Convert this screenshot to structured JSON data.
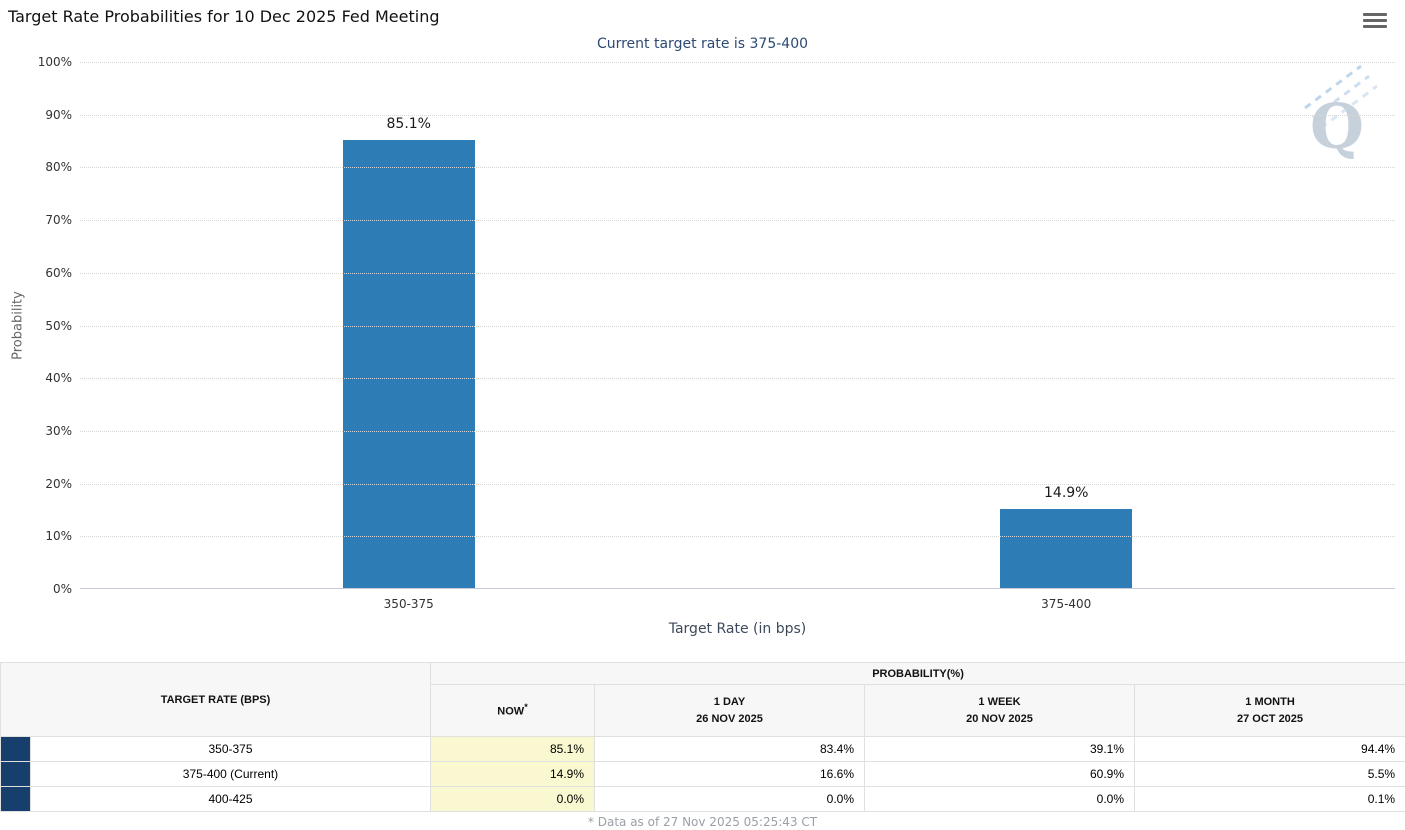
{
  "header": {
    "title": "Target Rate Probabilities for 10 Dec 2025 Fed Meeting"
  },
  "chart": {
    "subtitle": "Current target rate is 375-400",
    "ylabel": "Probability",
    "xlabel": "Target Rate (in bps)",
    "watermark_letter": "Q"
  },
  "chart_data": {
    "type": "bar",
    "title": "Target Rate Probabilities for 10 Dec 2025 Fed Meeting",
    "subtitle": "Current target rate is 375-400",
    "categories": [
      "350-375",
      "375-400"
    ],
    "values": [
      85.1,
      14.9
    ],
    "labels": [
      "85.1%",
      "14.9%"
    ],
    "xlabel": "Target Rate (in bps)",
    "ylabel": "Probability",
    "ylim": [
      0,
      100
    ],
    "ytick_labels": [
      "0%",
      "10%",
      "20%",
      "30%",
      "40%",
      "50%",
      "60%",
      "70%",
      "80%",
      "90%",
      "100%"
    ],
    "grid": "dotted-horizontal",
    "bar_color": "#2e7cb5"
  },
  "table": {
    "col_header_left": "TARGET RATE (BPS)",
    "group_header": "PROBABILITY(%)",
    "columns": [
      {
        "l1": "NOW",
        "sup": "*",
        "l2": ""
      },
      {
        "l1": "1 DAY",
        "l2": "26 NOV 2025"
      },
      {
        "l1": "1 WEEK",
        "l2": "20 NOV 2025"
      },
      {
        "l1": "1 MONTH",
        "l2": "27 OCT 2025"
      }
    ],
    "rows": [
      {
        "rate": "350-375",
        "now": "85.1%",
        "day": "83.4%",
        "week": "39.1%",
        "month": "94.4%"
      },
      {
        "rate": "375-400 (Current)",
        "now": "14.9%",
        "day": "16.6%",
        "week": "60.9%",
        "month": "5.5%"
      },
      {
        "rate": "400-425",
        "now": "0.0%",
        "day": "0.0%",
        "week": "0.0%",
        "month": "0.1%"
      }
    ]
  },
  "footer": {
    "note": "* Data as of 27 Nov 2025 05:25:43 CT"
  },
  "colors": {
    "bar": "#2e7cb5",
    "stripe_navy": "#173f6d",
    "now_highlight": "#f9f8d0",
    "header_bg": "#f7f7f7",
    "subtitle_text": "#2c4a72"
  }
}
